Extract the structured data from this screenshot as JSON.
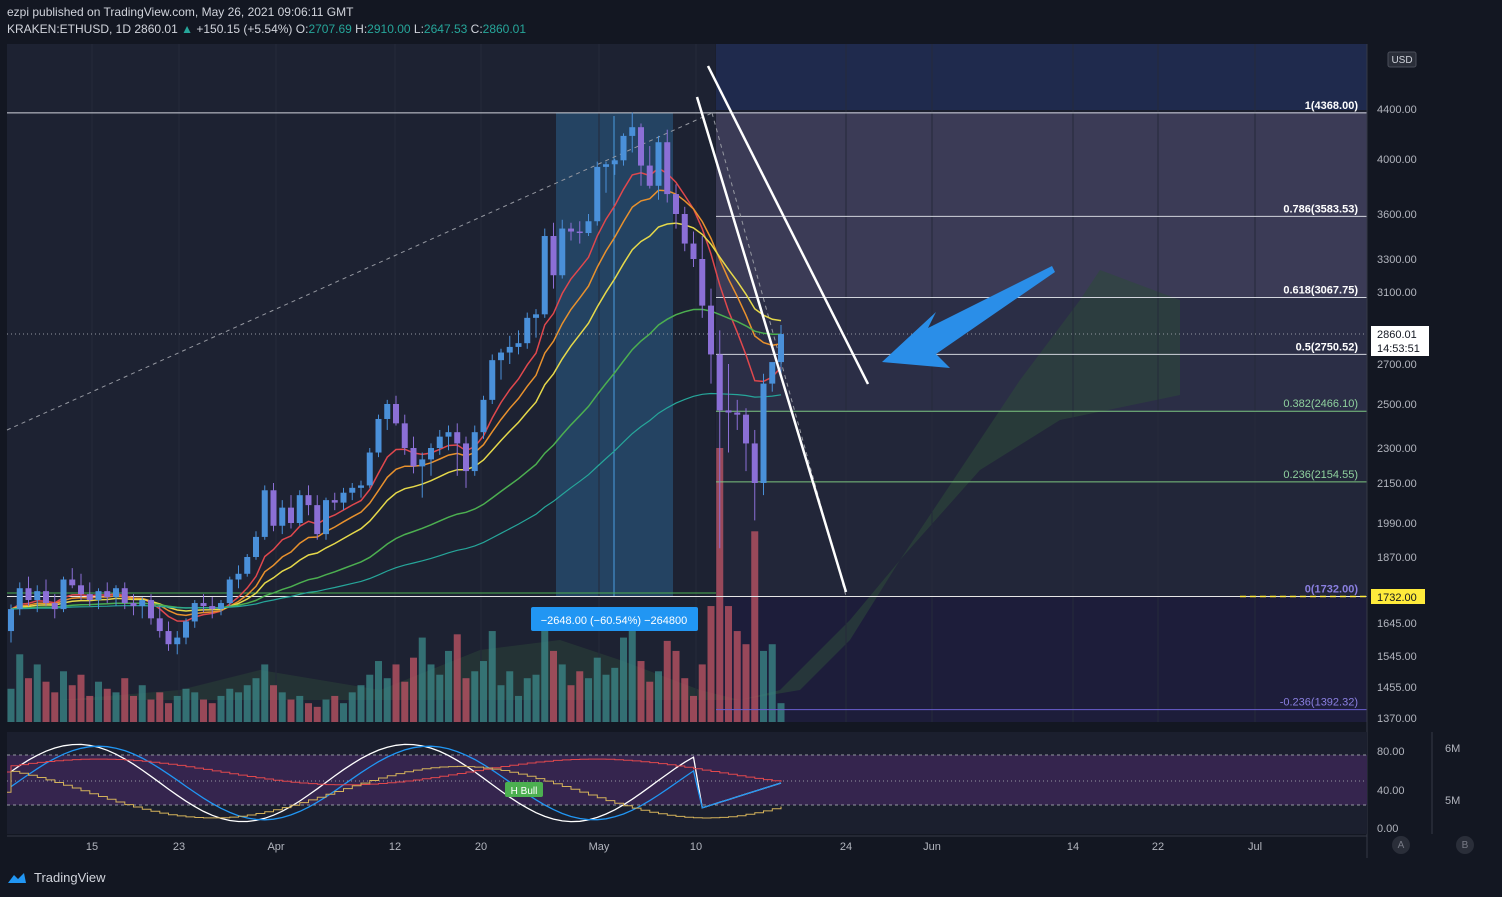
{
  "header": {
    "published": "ezpi published on TradingView.com, May 26, 2021 09:06:11 GMT",
    "symbol": "KRAKEN:ETHUSD, 1D",
    "last": "2860.01",
    "change": "+150.15 (+5.54%)",
    "o_label": "O:",
    "o": "2707.69",
    "h_label": "H:",
    "h": "2910.00",
    "l_label": "L:",
    "l": "2647.53",
    "c_label": "C:",
    "c": "2860.01"
  },
  "footer": {
    "brand": "TradingView",
    "btn_a": "A",
    "btn_b": "B"
  },
  "colors": {
    "up": "#4a90d9",
    "down": "#8b6fd6",
    "bg": "#131722",
    "accent": "#2196f3",
    "ema_red": "#e0484d",
    "ema_orange": "#e8912d",
    "ema_yellow": "#e6d94a",
    "ema_green": "#4caf50"
  },
  "chart_data": {
    "type": "candlestick",
    "currency": "USD",
    "price_axis_labels": [
      "4400.00",
      "4000.00",
      "3600.00",
      "3300.00",
      "3100.00",
      "2700.00",
      "2500.00",
      "2300.00",
      "2150.00",
      "1990.00",
      "1870.00",
      "1645.00",
      "1545.00",
      "1455.00",
      "1370.00"
    ],
    "last_price": "2860.01",
    "countdown": "14:53:51",
    "level_tag": "1732.00",
    "fib_levels": [
      {
        "label": "1(4368.00)",
        "value": 4368.0
      },
      {
        "label": "0.786(3583.53)",
        "value": 3583.53
      },
      {
        "label": "0.618(3067.75)",
        "value": 3067.75
      },
      {
        "label": "0.5(2750.52)",
        "value": 2750.52
      },
      {
        "label": "0.382(2466.10)",
        "value": 2466.1
      },
      {
        "label": "0.236(2154.55)",
        "value": 2154.55
      },
      {
        "label": "0(1732.00)",
        "value": 1732.0
      },
      {
        "label": "-0.236(1392.32)",
        "value": 1392.32
      }
    ],
    "measure_label": "−2648.00 (−60.54%) −264800",
    "badge": "H Bull",
    "time_labels": [
      "15",
      "23",
      "Apr",
      "12",
      "20",
      "May",
      "10",
      "24",
      "Jun",
      "14",
      "22",
      "Jul"
    ],
    "osc_axis_labels": [
      "80.00",
      "40.00",
      "0.00"
    ],
    "volume_axis_labels": [
      "6M",
      "5M"
    ],
    "candles": [
      [
        1620,
        1705,
        1585,
        1690
      ],
      [
        1690,
        1780,
        1670,
        1760
      ],
      [
        1760,
        1800,
        1700,
        1720
      ],
      [
        1720,
        1770,
        1680,
        1750
      ],
      [
        1750,
        1790,
        1700,
        1710
      ],
      [
        1710,
        1740,
        1660,
        1690
      ],
      [
        1690,
        1800,
        1680,
        1790
      ],
      [
        1790,
        1830,
        1760,
        1770
      ],
      [
        1770,
        1810,
        1720,
        1740
      ],
      [
        1740,
        1780,
        1700,
        1720
      ],
      [
        1720,
        1760,
        1690,
        1750
      ],
      [
        1750,
        1780,
        1710,
        1730
      ],
      [
        1730,
        1770,
        1700,
        1760
      ],
      [
        1760,
        1780,
        1690,
        1710
      ],
      [
        1710,
        1740,
        1670,
        1700
      ],
      [
        1700,
        1730,
        1660,
        1720
      ],
      [
        1720,
        1740,
        1640,
        1660
      ],
      [
        1660,
        1700,
        1600,
        1620
      ],
      [
        1620,
        1650,
        1560,
        1580
      ],
      [
        1580,
        1620,
        1550,
        1600
      ],
      [
        1600,
        1660,
        1580,
        1650
      ],
      [
        1650,
        1720,
        1630,
        1710
      ],
      [
        1710,
        1740,
        1680,
        1700
      ],
      [
        1700,
        1730,
        1660,
        1690
      ],
      [
        1690,
        1720,
        1670,
        1710
      ],
      [
        1710,
        1800,
        1700,
        1790
      ],
      [
        1790,
        1840,
        1760,
        1810
      ],
      [
        1810,
        1880,
        1800,
        1870
      ],
      [
        1870,
        1960,
        1860,
        1940
      ],
      [
        1940,
        2140,
        1930,
        2120
      ],
      [
        2120,
        2150,
        1960,
        1980
      ],
      [
        1980,
        2080,
        1950,
        2050
      ],
      [
        2050,
        2100,
        1970,
        1990
      ],
      [
        1990,
        2120,
        1980,
        2100
      ],
      [
        2100,
        2140,
        2020,
        2060
      ],
      [
        2060,
        2100,
        1930,
        1950
      ],
      [
        1950,
        2090,
        1930,
        2080
      ],
      [
        2080,
        2110,
        2040,
        2070
      ],
      [
        2070,
        2130,
        2040,
        2110
      ],
      [
        2110,
        2150,
        2080,
        2130
      ],
      [
        2130,
        2160,
        2090,
        2140
      ],
      [
        2140,
        2300,
        2130,
        2280
      ],
      [
        2280,
        2450,
        2260,
        2430
      ],
      [
        2430,
        2520,
        2380,
        2500
      ],
      [
        2500,
        2540,
        2400,
        2410
      ],
      [
        2410,
        2450,
        2270,
        2300
      ],
      [
        2300,
        2350,
        2190,
        2220
      ],
      [
        2220,
        2280,
        2090,
        2250
      ],
      [
        2250,
        2320,
        2180,
        2300
      ],
      [
        2300,
        2380,
        2270,
        2350
      ],
      [
        2350,
        2400,
        2290,
        2370
      ],
      [
        2370,
        2410,
        2180,
        2320
      ],
      [
        2320,
        2350,
        2130,
        2200
      ],
      [
        2200,
        2400,
        2180,
        2370
      ],
      [
        2370,
        2540,
        2340,
        2520
      ],
      [
        2520,
        2750,
        2500,
        2720
      ],
      [
        2720,
        2780,
        2620,
        2760
      ],
      [
        2760,
        2850,
        2700,
        2790
      ],
      [
        2790,
        2880,
        2750,
        2810
      ],
      [
        2810,
        2980,
        2780,
        2950
      ],
      [
        2950,
        3000,
        2840,
        2970
      ],
      [
        2970,
        3500,
        2950,
        3450
      ],
      [
        3450,
        3540,
        3120,
        3200
      ],
      [
        3200,
        3560,
        3180,
        3500
      ],
      [
        3500,
        3540,
        3420,
        3480
      ],
      [
        3480,
        3550,
        3400,
        3470
      ],
      [
        3470,
        3600,
        3450,
        3550
      ],
      [
        3550,
        3980,
        3520,
        3940
      ],
      [
        3940,
        3980,
        3750,
        3960
      ],
      [
        3960,
        4000,
        3880,
        3990
      ],
      [
        3990,
        4200,
        3950,
        4180
      ],
      [
        4180,
        4370,
        4050,
        4250
      ],
      [
        4250,
        4280,
        3800,
        3950
      ],
      [
        3950,
        4100,
        3780,
        3800
      ],
      [
        3800,
        4180,
        3700,
        4130
      ],
      [
        4130,
        4230,
        3680,
        3740
      ],
      [
        3740,
        3810,
        3500,
        3600
      ],
      [
        3600,
        3650,
        3350,
        3400
      ],
      [
        3400,
        3480,
        3250,
        3300
      ],
      [
        3300,
        3450,
        2950,
        3020
      ],
      [
        3020,
        3120,
        2600,
        2750
      ],
      [
        2750,
        2880,
        1900,
        2470
      ],
      [
        2470,
        2700,
        2280,
        2460
      ],
      [
        2460,
        2520,
        2380,
        2450
      ],
      [
        2450,
        2480,
        2200,
        2320
      ],
      [
        2320,
        2380,
        2000,
        2150
      ],
      [
        2150,
        2650,
        2100,
        2600
      ],
      [
        2600,
        2700,
        2560,
        2710
      ],
      [
        2710,
        2910,
        2648,
        2860
      ]
    ],
    "volumes": [
      1450,
      1550,
      1480,
      1520,
      1470,
      1440,
      1500,
      1460,
      1490,
      1430,
      1470,
      1450,
      1440,
      1480,
      1430,
      1460,
      1420,
      1440,
      1410,
      1430,
      1450,
      1440,
      1420,
      1410,
      1430,
      1450,
      1440,
      1460,
      1480,
      1520,
      1460,
      1440,
      1420,
      1430,
      1410,
      1400,
      1420,
      1430,
      1410,
      1440,
      1460,
      1490,
      1530,
      1480,
      1520,
      1470,
      1540,
      1600,
      1520,
      1490,
      1560,
      1610,
      1480,
      1500,
      1530,
      1620,
      1460,
      1500,
      1430,
      1480,
      1490,
      1640,
      1560,
      1520,
      1460,
      1500,
      1480,
      1540,
      1490,
      1510,
      1600,
      1650,
      1530,
      1470,
      1500,
      1590,
      1560,
      1480,
      1430,
      1520,
      1700,
      2300,
      1700,
      1620,
      1580,
      1960,
      1560,
      1580,
      1410
    ],
    "ranges": {
      "price": [
        1370,
        4850
      ],
      "osc": [
        0,
        100
      ]
    }
  }
}
